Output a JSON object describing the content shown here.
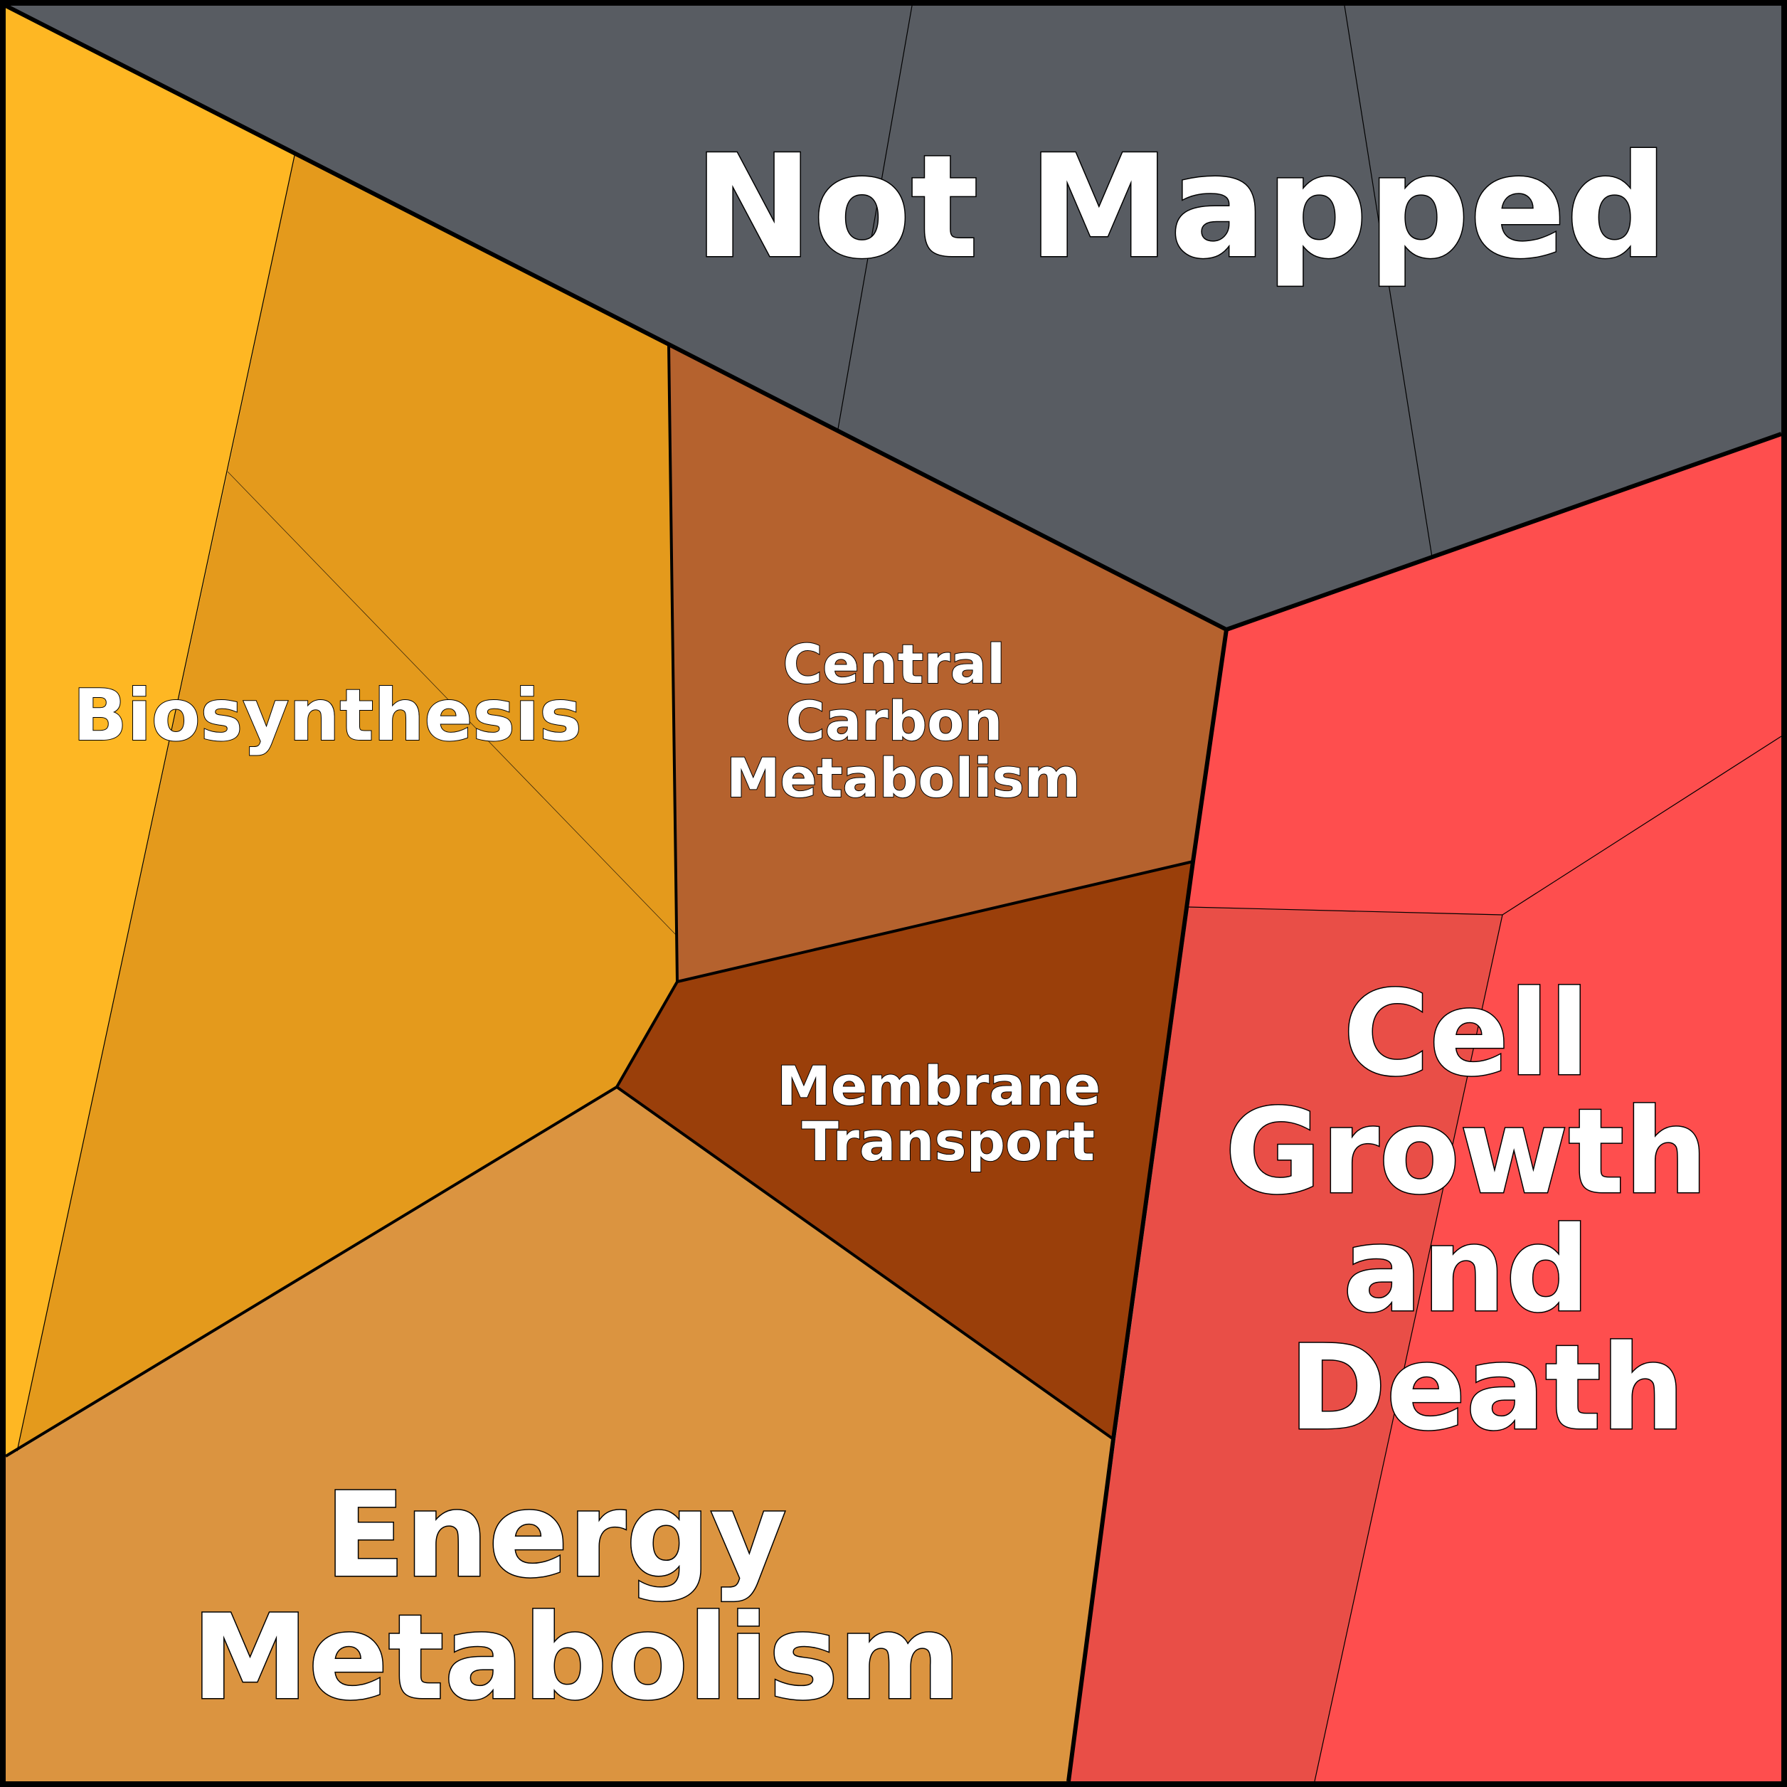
{
  "diagram": {
    "type": "voronoi-treemap",
    "categories": [
      {
        "id": "not-mapped",
        "label_lines": [
          "Not Mapped"
        ],
        "color": "#585C62"
      },
      {
        "id": "biosynthesis",
        "label_lines": [
          "Biosynthesis"
        ],
        "color": "#E49A1C"
      },
      {
        "id": "central-carbon",
        "label_lines": [
          "Central",
          "Carbon",
          "Metabolism"
        ],
        "color": "#B5622E"
      },
      {
        "id": "membrane-transport",
        "label_lines": [
          "Membrane",
          "Transport"
        ],
        "color": "#9A3F0A"
      },
      {
        "id": "energy-metabolism",
        "label_lines": [
          "Energy",
          "Metabolism"
        ],
        "color": "#DB9440"
      },
      {
        "id": "cell-growth",
        "label_lines": [
          "Cell",
          "Growth",
          "and",
          "Death"
        ],
        "color": "#FE4E4E"
      }
    ],
    "sub_colors": {
      "biosynthesis_light": "#FEB723",
      "cell_growth_dark": "#E94E47"
    }
  }
}
